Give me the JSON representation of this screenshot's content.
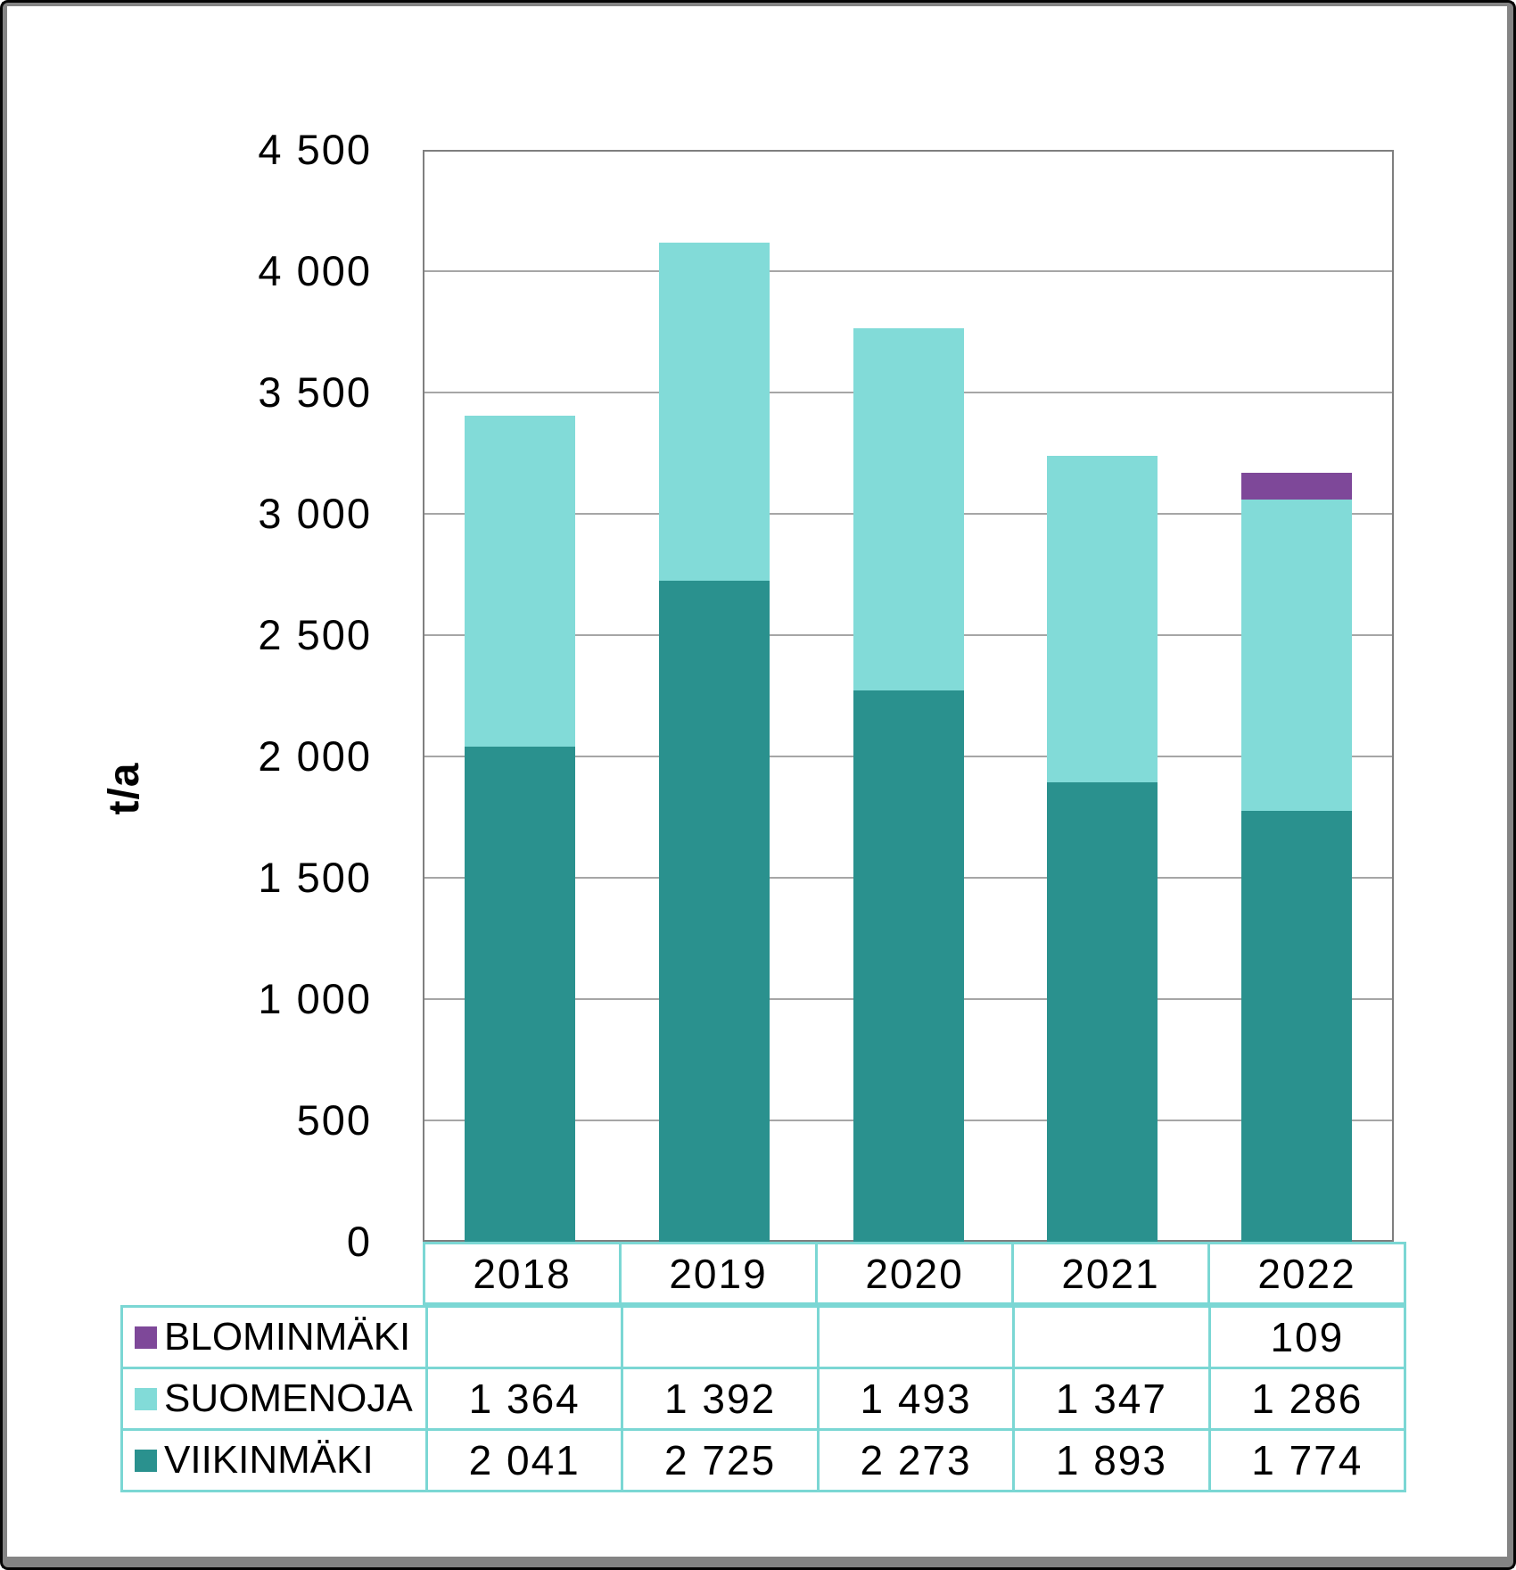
{
  "chart": {
    "y_axis_title": "t/a",
    "y_ticks": [
      "4 500",
      "4 000",
      "3 500",
      "3 000",
      "2 500",
      "2 000",
      "1 500",
      "1 000",
      "500",
      "0"
    ],
    "y_tick_step": 500
  },
  "chart_data": {
    "type": "bar",
    "stacked": true,
    "categories": [
      "2018",
      "2019",
      "2020",
      "2021",
      "2022"
    ],
    "series": [
      {
        "name": "VIIKINMÄKI",
        "color": "#2a918e",
        "values": [
          2041,
          2725,
          2273,
          1893,
          1774
        ]
      },
      {
        "name": "SUOMENOJA",
        "color": "#82dbd8",
        "values": [
          1364,
          1392,
          1493,
          1347,
          1286
        ]
      },
      {
        "name": "BLOMINMÄKI",
        "color": "#7e4899",
        "values": [
          null,
          null,
          null,
          null,
          109
        ]
      }
    ],
    "title": "",
    "xlabel": "",
    "ylabel": "t/a",
    "ylim": [
      0,
      4500
    ],
    "grid": true,
    "legend_position": "table-left"
  },
  "table": {
    "header_years": [
      "2018",
      "2019",
      "2020",
      "2021",
      "2022"
    ],
    "rows": [
      {
        "label": "BLOMINMÄKI",
        "color": "#7e4899",
        "values": [
          "",
          "",
          "",
          "",
          "109"
        ]
      },
      {
        "label": "SUOMENOJA",
        "color": "#82dbd8",
        "values": [
          "1 364",
          "1 392",
          "1 493",
          "1 347",
          "1 286"
        ]
      },
      {
        "label": "VIIKINMÄKI",
        "color": "#2a918e",
        "values": [
          "2 041",
          "2 725",
          "2 273",
          "1 893",
          "1 774"
        ]
      }
    ]
  },
  "colors": {
    "viikinmaki": "#2a918e",
    "suomenoja": "#82dbd8",
    "blominmaki": "#7e4899",
    "table_border": "#7bd7d4",
    "gridline": "#a6a6a6",
    "plot_border": "#7f7f7f",
    "frame_gray": "#848484",
    "frame_black": "#050505"
  }
}
